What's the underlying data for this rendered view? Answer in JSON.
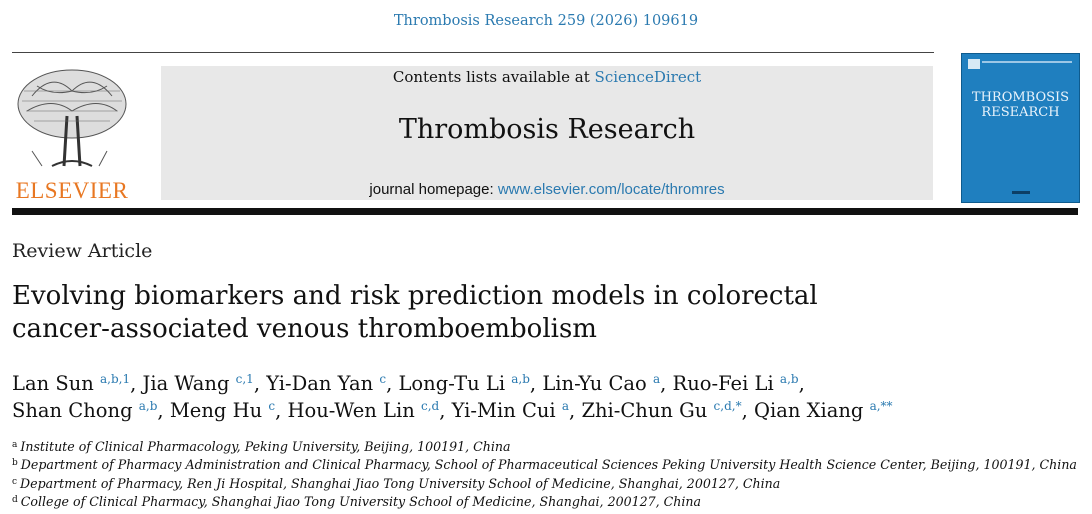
{
  "header": {
    "citation": "Thrombosis Research 259 (2026) 109619",
    "contents_prefix": "Contents lists available at ",
    "contents_link": "ScienceDirect",
    "journal_title": "Thrombosis Research",
    "homepage_prefix": "journal homepage: ",
    "homepage_url": "www.elsevier.com/locate/thromres",
    "publisher": "ELSEVIER",
    "cover_title_line1": "THROMBOSIS",
    "cover_title_line2": "RESEARCH"
  },
  "article": {
    "type": "Review Article",
    "title_line1": "Evolving biomarkers and risk prediction models in colorectal",
    "title_line2": "cancer-associated venous thromboembolism"
  },
  "authors_line1": [
    {
      "name": "Lan Sun",
      "sup": "a,b,1",
      "sep": ", "
    },
    {
      "name": "Jia Wang",
      "sup": "c,1",
      "sep": ", "
    },
    {
      "name": "Yi-Dan Yan",
      "sup": "c",
      "sep": ", "
    },
    {
      "name": "Long-Tu Li",
      "sup": "a,b",
      "sep": ", "
    },
    {
      "name": "Lin-Yu Cao",
      "sup": "a",
      "sep": ", "
    },
    {
      "name": "Ruo-Fei Li",
      "sup": "a,b",
      "sep": ","
    }
  ],
  "authors_line2": [
    {
      "name": "Shan Chong",
      "sup": "a,b",
      "sep": ", "
    },
    {
      "name": "Meng Hu",
      "sup": "c",
      "sep": ", "
    },
    {
      "name": "Hou-Wen Lin",
      "sup": "c,d",
      "sep": ", "
    },
    {
      "name": "Yi-Min Cui",
      "sup": "a",
      "sep": ", "
    },
    {
      "name": "Zhi-Chun Gu",
      "sup": "c,d,*",
      "sep": ", "
    },
    {
      "name": "Qian Xiang",
      "sup": "a,**",
      "sep": ""
    }
  ],
  "affiliations": [
    {
      "key": "a",
      "text": "Institute of Clinical Pharmacology, Peking University, Beijing, 100191, China"
    },
    {
      "key": "b",
      "text": "Department of Pharmacy Administration and Clinical Pharmacy, School of Pharmaceutical Sciences Peking University Health Science Center, Beijing, 100191, China"
    },
    {
      "key": "c",
      "text": "Department of Pharmacy, Ren Ji Hospital, Shanghai Jiao Tong University School of Medicine, Shanghai, 200127, China"
    },
    {
      "key": "d",
      "text": "College of Clinical Pharmacy, Shanghai Jiao Tong University School of Medicine, Shanghai, 200127, China"
    }
  ],
  "colors": {
    "link": "#2b7ab0",
    "publisher_orange": "#e87722",
    "cover_blue": "#1f7fbf"
  }
}
